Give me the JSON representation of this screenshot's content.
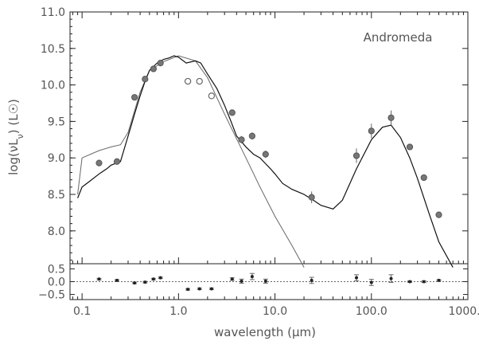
{
  "annotation": "Andromeda",
  "xlabel": "wavelength (μm)",
  "ylabel_top": "log(νL",
  "ylabel_sub": "ν",
  "ylabel_unit": ")  (L☉)",
  "chart_data": [
    {
      "type": "scatter",
      "panel": "main",
      "xscale": "log",
      "xlim": [
        0.075,
        1000
      ],
      "ylim": [
        7.55,
        11.0
      ],
      "yticks": [
        8.0,
        8.5,
        9.0,
        9.5,
        10.0,
        10.5,
        11.0
      ],
      "xtick_labels": [
        "0.1",
        "1.0",
        "10.0",
        "100.0",
        "1000.0"
      ],
      "ylabel": "log(νLν)  (L☉)",
      "annotation": "Andromeda",
      "series": [
        {
          "kind": "total-model-line",
          "x": [
            0.09,
            0.1,
            0.12,
            0.15,
            0.18,
            0.2,
            0.25,
            0.3,
            0.35,
            0.4,
            0.45,
            0.5,
            0.6,
            0.7,
            0.8,
            0.9,
            1.0,
            1.2,
            1.5,
            1.7,
            2.0,
            2.5,
            3.0,
            3.5,
            4.0,
            5.0,
            6.0,
            7.0,
            8.0,
            9.0,
            10.0,
            12.0,
            15.0,
            20.0,
            25.0,
            30.0,
            40.0,
            50.0,
            70.0,
            100.0,
            130.0,
            160.0,
            200.0,
            250.0,
            300.0,
            400.0,
            500.0,
            700.0
          ],
          "y": [
            8.45,
            8.6,
            8.68,
            8.78,
            8.85,
            8.9,
            8.95,
            9.3,
            9.6,
            9.85,
            10.05,
            10.2,
            10.3,
            10.35,
            10.37,
            10.4,
            10.38,
            10.3,
            10.33,
            10.3,
            10.15,
            9.95,
            9.72,
            9.5,
            9.3,
            9.15,
            9.05,
            9.0,
            8.92,
            8.85,
            8.78,
            8.65,
            8.57,
            8.5,
            8.42,
            8.35,
            8.3,
            8.42,
            8.85,
            9.25,
            9.42,
            9.45,
            9.28,
            9.0,
            8.72,
            8.22,
            7.85,
            7.5
          ]
        },
        {
          "kind": "stellar-model-line",
          "x": [
            0.09,
            0.1,
            0.15,
            0.2,
            0.25,
            0.3,
            0.4,
            0.5,
            0.7,
            1.0,
            1.5,
            2.0,
            3.0,
            5.0,
            7.0,
            10.0,
            15.0,
            20.0
          ],
          "y": [
            8.5,
            9.0,
            9.1,
            9.15,
            9.18,
            9.35,
            9.9,
            10.2,
            10.32,
            10.4,
            10.33,
            10.1,
            9.6,
            9.0,
            8.6,
            8.2,
            7.8,
            7.5
          ]
        },
        {
          "kind": "filled-data",
          "x": [
            0.15,
            0.23,
            0.35,
            0.45,
            0.55,
            0.65,
            3.6,
            4.5,
            5.8,
            8.0,
            24.0,
            70.0,
            100.0,
            160.0,
            250.0,
            350.0,
            500.0
          ],
          "y": [
            8.93,
            8.95,
            9.83,
            10.08,
            10.22,
            10.3,
            9.62,
            9.25,
            9.3,
            9.05,
            8.46,
            9.03,
            9.37,
            9.55,
            9.15,
            8.73,
            8.22
          ],
          "yerr": [
            0.03,
            0.03,
            0.03,
            0.03,
            0.03,
            0.03,
            0.03,
            0.05,
            0.05,
            0.05,
            0.08,
            0.1,
            0.1,
            0.1,
            0.03,
            0.03,
            0.03
          ]
        },
        {
          "kind": "open-data",
          "x": [
            1.25,
            1.65,
            2.2
          ],
          "y": [
            10.05,
            10.05,
            9.85
          ],
          "yerr": [
            0.03,
            0.03,
            0.03
          ]
        }
      ]
    },
    {
      "type": "scatter",
      "panel": "residual",
      "xscale": "log",
      "xlim": [
        0.075,
        1000
      ],
      "ylim": [
        -0.7,
        0.7
      ],
      "yticks": [
        -0.5,
        0.0,
        0.5
      ],
      "ytick_labels": [
        "−0.5",
        "0.0",
        "0.5"
      ],
      "xlabel": "wavelength (μm)",
      "x": [
        0.15,
        0.23,
        0.35,
        0.45,
        0.55,
        0.65,
        1.25,
        1.65,
        2.2,
        3.6,
        4.5,
        5.8,
        8.0,
        24.0,
        70.0,
        100.0,
        160.0,
        250.0,
        350.0,
        500.0
      ],
      "y": [
        0.1,
        0.05,
        -0.05,
        -0.02,
        0.1,
        0.15,
        -0.3,
        -0.28,
        -0.28,
        0.1,
        0.02,
        0.2,
        0.02,
        0.05,
        0.15,
        -0.03,
        0.12,
        0.0,
        0.0,
        0.05
      ],
      "yerr": [
        0.03,
        0.03,
        0.03,
        0.03,
        0.03,
        0.03,
        0.03,
        0.03,
        0.03,
        0.05,
        0.08,
        0.12,
        0.08,
        0.12,
        0.12,
        0.12,
        0.15,
        0.03,
        0.03,
        0.03
      ]
    }
  ]
}
